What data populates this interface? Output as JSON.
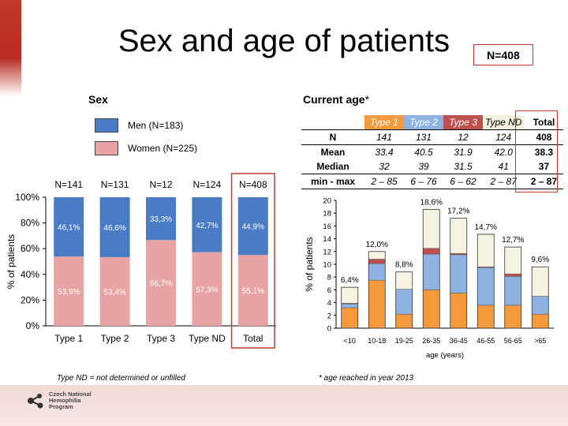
{
  "title": "Sex and age of patients",
  "total_badge": "N=408",
  "sex": {
    "heading": "Sex",
    "legend": [
      {
        "label": "Men (N=183)",
        "color": "#4a7cc6"
      },
      {
        "label": "Women (N=225)",
        "color": "#e8a4a4"
      }
    ],
    "footnote": "Type ND = not determined or unfilled"
  },
  "age": {
    "heading": "Current age",
    "heading_mark": "*",
    "footnote": "* age reached in year 2013",
    "table": {
      "headers": [
        {
          "label": "Type 1",
          "color": "#f49a3c"
        },
        {
          "label": "Type 2",
          "color": "#8eb2e2"
        },
        {
          "label": "Type 3",
          "color": "#c0504d"
        },
        {
          "label": "Type ND",
          "color": "#f2efdc"
        },
        {
          "label": "Total",
          "color": "#ffffff"
        }
      ],
      "rows": [
        {
          "label": "N",
          "values": [
            "141",
            "131",
            "12",
            "124"
          ],
          "total": "408"
        },
        {
          "label": "Mean",
          "values": [
            "33.4",
            "40.5",
            "31.9",
            "42.0"
          ],
          "total": "38.3"
        },
        {
          "label": "Median",
          "values": [
            "32",
            "39",
            "31.5",
            "41"
          ],
          "total": "37"
        },
        {
          "label": "min - max",
          "values": [
            "2 – 85",
            "6 – 76",
            "6 – 62",
            "2 – 87"
          ],
          "total": "2 – 87"
        }
      ]
    }
  },
  "chart_data": [
    {
      "type": "bar",
      "stacked": true,
      "categories": [
        "Type 1",
        "Type 2",
        "Type 3",
        "Type ND",
        "Total"
      ],
      "top_labels": [
        "N=141",
        "N=131",
        "N=12",
        "N=124",
        "N=408"
      ],
      "series": [
        {
          "name": "Women (N=225)",
          "values": [
            53.9,
            53.4,
            66.7,
            57.3,
            55.1
          ],
          "labels": [
            "53,9%",
            "53,4%",
            "66,7%",
            "57,3%",
            "55,1%"
          ],
          "color": "#e8a4a4"
        },
        {
          "name": "Men (N=183)",
          "values": [
            46.1,
            46.6,
            33.3,
            42.7,
            44.9
          ],
          "labels": [
            "46,1%",
            "46,6%",
            "33,3%",
            "42,7%",
            "44,9%"
          ],
          "color": "#4a7cc6"
        }
      ],
      "ylabel": "% of patients",
      "ylim": [
        0,
        100
      ],
      "yticks": [
        "0%",
        "20%",
        "40%",
        "60%",
        "80%",
        "100%"
      ],
      "highlight": "Total"
    },
    {
      "type": "bar",
      "stacked": true,
      "categories": [
        "<10",
        "10-18",
        "19-25",
        "26-35",
        "36-45",
        "46-55",
        "56-65",
        ">65"
      ],
      "totals_labels": [
        "6,4%",
        "12,0%",
        "8,8%",
        "18,6%",
        "17,2%",
        "14,7%",
        "12,7%",
        "9,6%"
      ],
      "series": [
        {
          "name": "Type 1",
          "values": [
            3.2,
            7.5,
            2.2,
            6.0,
            5.5,
            3.6,
            3.6,
            2.2
          ],
          "color": "#f49a3c"
        },
        {
          "name": "Type 2",
          "values": [
            0.6,
            2.6,
            3.9,
            5.6,
            6.0,
            5.9,
            4.5,
            2.8
          ],
          "color": "#8eb2e2"
        },
        {
          "name": "Type 3",
          "values": [
            0.1,
            0.7,
            0.0,
            0.9,
            0.2,
            0.1,
            0.4,
            0.0
          ],
          "color": "#c0504d"
        },
        {
          "name": "Type ND",
          "values": [
            2.5,
            1.2,
            2.7,
            6.1,
            5.5,
            5.1,
            4.2,
            4.6
          ],
          "color": "#f7f3e3"
        }
      ],
      "xlabel": "age (years)",
      "ylabel": "% of patients",
      "ylim": [
        0,
        20
      ],
      "ytick_step": 2
    }
  ]
}
